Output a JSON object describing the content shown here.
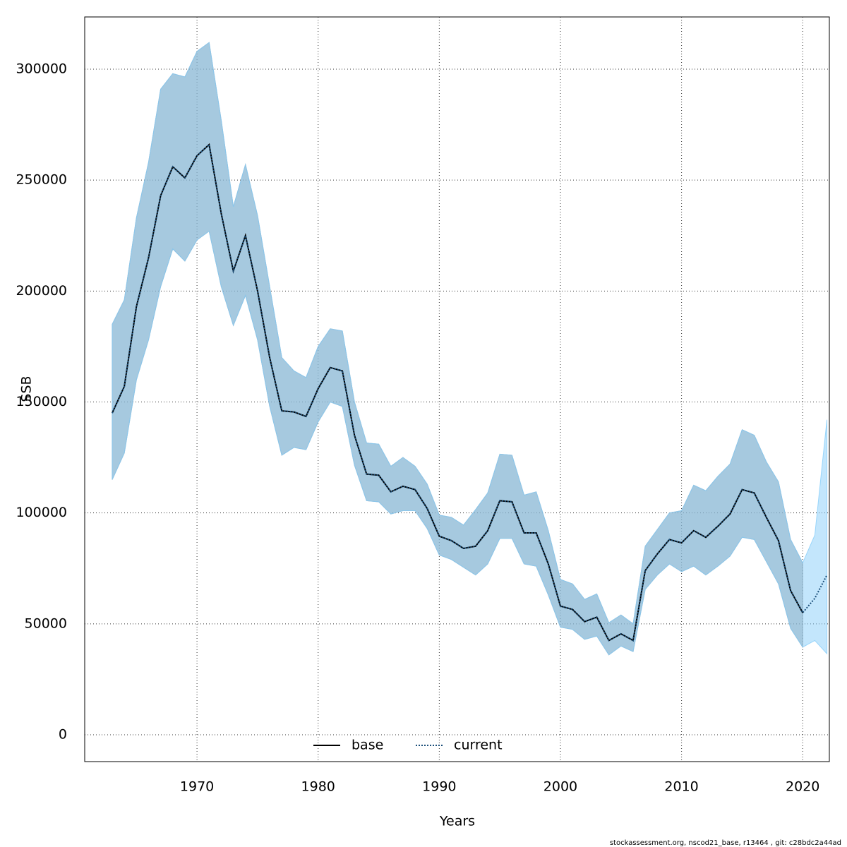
{
  "chart_data": {
    "type": "line",
    "xlabel": "Years",
    "ylabel": "SSB",
    "footer": "stockassessment.org, nscod21_base, r13464 , git: c28bdc2a44ad",
    "x": [
      1963,
      1964,
      1965,
      1966,
      1967,
      1968,
      1969,
      1970,
      1971,
      1972,
      1973,
      1974,
      1975,
      1976,
      1977,
      1978,
      1979,
      1980,
      1981,
      1982,
      1983,
      1984,
      1985,
      1986,
      1987,
      1988,
      1989,
      1990,
      1991,
      1992,
      1993,
      1994,
      1995,
      1996,
      1997,
      1998,
      1999,
      2000,
      2001,
      2002,
      2003,
      2004,
      2005,
      2006,
      2007,
      2008,
      2009,
      2010,
      2011,
      2012,
      2013,
      2014,
      2015,
      2016,
      2017,
      2018,
      2019,
      2020,
      2021,
      2022
    ],
    "series": [
      {
        "name": "base",
        "color": "#000000",
        "band_color": "#8c8c8c",
        "dash": false,
        "values": [
          145000,
          157000,
          193000,
          215000,
          243000,
          256000,
          251000,
          261000,
          266000,
          235000,
          209000,
          225000,
          200000,
          170000,
          146000,
          145500,
          143500,
          156000,
          165500,
          164000,
          135000,
          117500,
          117000,
          109500,
          112000,
          110500,
          102000,
          89500,
          87500,
          84000,
          85000,
          92000,
          105500,
          105000,
          91000,
          91000,
          77000,
          58000,
          56500,
          51000,
          53000,
          42500,
          45500,
          42500,
          74000,
          81500,
          88000,
          86500,
          92000,
          89000,
          94000,
          99500,
          110500,
          109000,
          98000,
          87500,
          65000,
          55000,
          null,
          null
        ],
        "upper": [
          185000,
          196000,
          233000,
          258000,
          291000,
          298000,
          296500,
          308000,
          312000,
          277000,
          238000,
          257000,
          234000,
          202000,
          170000,
          164000,
          161000,
          175000,
          183000,
          182000,
          150000,
          131500,
          131000,
          121000,
          125000,
          121000,
          113000,
          99000,
          98000,
          94500,
          101500,
          109000,
          126500,
          126000,
          108000,
          109500,
          92000,
          70000,
          68000,
          61000,
          63500,
          50500,
          54000,
          50000,
          85000,
          92500,
          100000,
          101000,
          112500,
          110000,
          116500,
          122000,
          137500,
          135000,
          123000,
          114000,
          88000,
          77500,
          null,
          null
        ],
        "lower": [
          115000,
          127000,
          160000,
          178000,
          202000,
          219000,
          213500,
          223000,
          227000,
          202000,
          184500,
          198000,
          178000,
          148000,
          126000,
          129500,
          128500,
          141000,
          150000,
          148000,
          121500,
          105500,
          105000,
          99500,
          101000,
          101000,
          93000,
          81000,
          79000,
          75500,
          72000,
          77000,
          88500,
          88500,
          77000,
          76000,
          63000,
          48500,
          47500,
          43000,
          44500,
          36000,
          40000,
          37500,
          65500,
          72000,
          77000,
          73500,
          76000,
          72000,
          76000,
          80500,
          89000,
          88000,
          78000,
          68000,
          48000,
          39500,
          null,
          null
        ]
      },
      {
        "name": "current",
        "color": "#1b4f7a",
        "band_color": "#87cefa",
        "dash": true,
        "values": [
          145000,
          157000,
          193000,
          215000,
          243000,
          256000,
          251000,
          261000,
          266000,
          235000,
          209000,
          225000,
          200000,
          170000,
          146000,
          145500,
          143500,
          156000,
          165500,
          164000,
          135000,
          117500,
          117000,
          109500,
          112000,
          110500,
          102000,
          89500,
          87500,
          84000,
          85000,
          92000,
          105500,
          105000,
          91000,
          91000,
          77000,
          58000,
          56500,
          51000,
          53000,
          42500,
          45500,
          42500,
          74000,
          81500,
          88000,
          86500,
          92000,
          89000,
          94000,
          99500,
          110500,
          109000,
          98000,
          87500,
          65000,
          55000,
          61500,
          72000
        ],
        "upper": [
          185000,
          196000,
          233000,
          258000,
          291000,
          298000,
          296500,
          308000,
          312000,
          277000,
          238000,
          257000,
          234000,
          202000,
          170000,
          164000,
          161000,
          175000,
          183000,
          182000,
          150000,
          131500,
          131000,
          121000,
          125000,
          121000,
          113000,
          99000,
          98000,
          94500,
          101500,
          109000,
          126500,
          126000,
          108000,
          109500,
          92000,
          70000,
          68000,
          61000,
          63500,
          50500,
          54000,
          50000,
          85000,
          92500,
          100000,
          101000,
          112500,
          110000,
          116500,
          122000,
          137500,
          135000,
          123000,
          114000,
          88000,
          77500,
          90000,
          142000
        ],
        "lower": [
          115000,
          127000,
          160000,
          178000,
          202000,
          219000,
          213500,
          223000,
          227000,
          202000,
          184500,
          198000,
          178000,
          148000,
          126000,
          129500,
          128500,
          141000,
          150000,
          148000,
          121500,
          105500,
          105000,
          99500,
          101000,
          101000,
          93000,
          81000,
          79000,
          75500,
          72000,
          77000,
          88500,
          88500,
          77000,
          76000,
          63000,
          48500,
          47500,
          43000,
          44500,
          36000,
          40000,
          37500,
          65500,
          72000,
          77000,
          73500,
          76000,
          72000,
          76000,
          80500,
          89000,
          88000,
          78000,
          68000,
          48000,
          39500,
          42500,
          36500
        ]
      }
    ],
    "xlim": [
      1960.73,
      2022.2
    ],
    "xticks": [
      1970,
      1980,
      1990,
      2000,
      2010,
      2020
    ],
    "ylim": [
      -12090,
      323540
    ],
    "yticks": [
      0,
      50000,
      100000,
      150000,
      200000,
      250000,
      300000
    ],
    "grid": true,
    "legend": "bottom"
  }
}
